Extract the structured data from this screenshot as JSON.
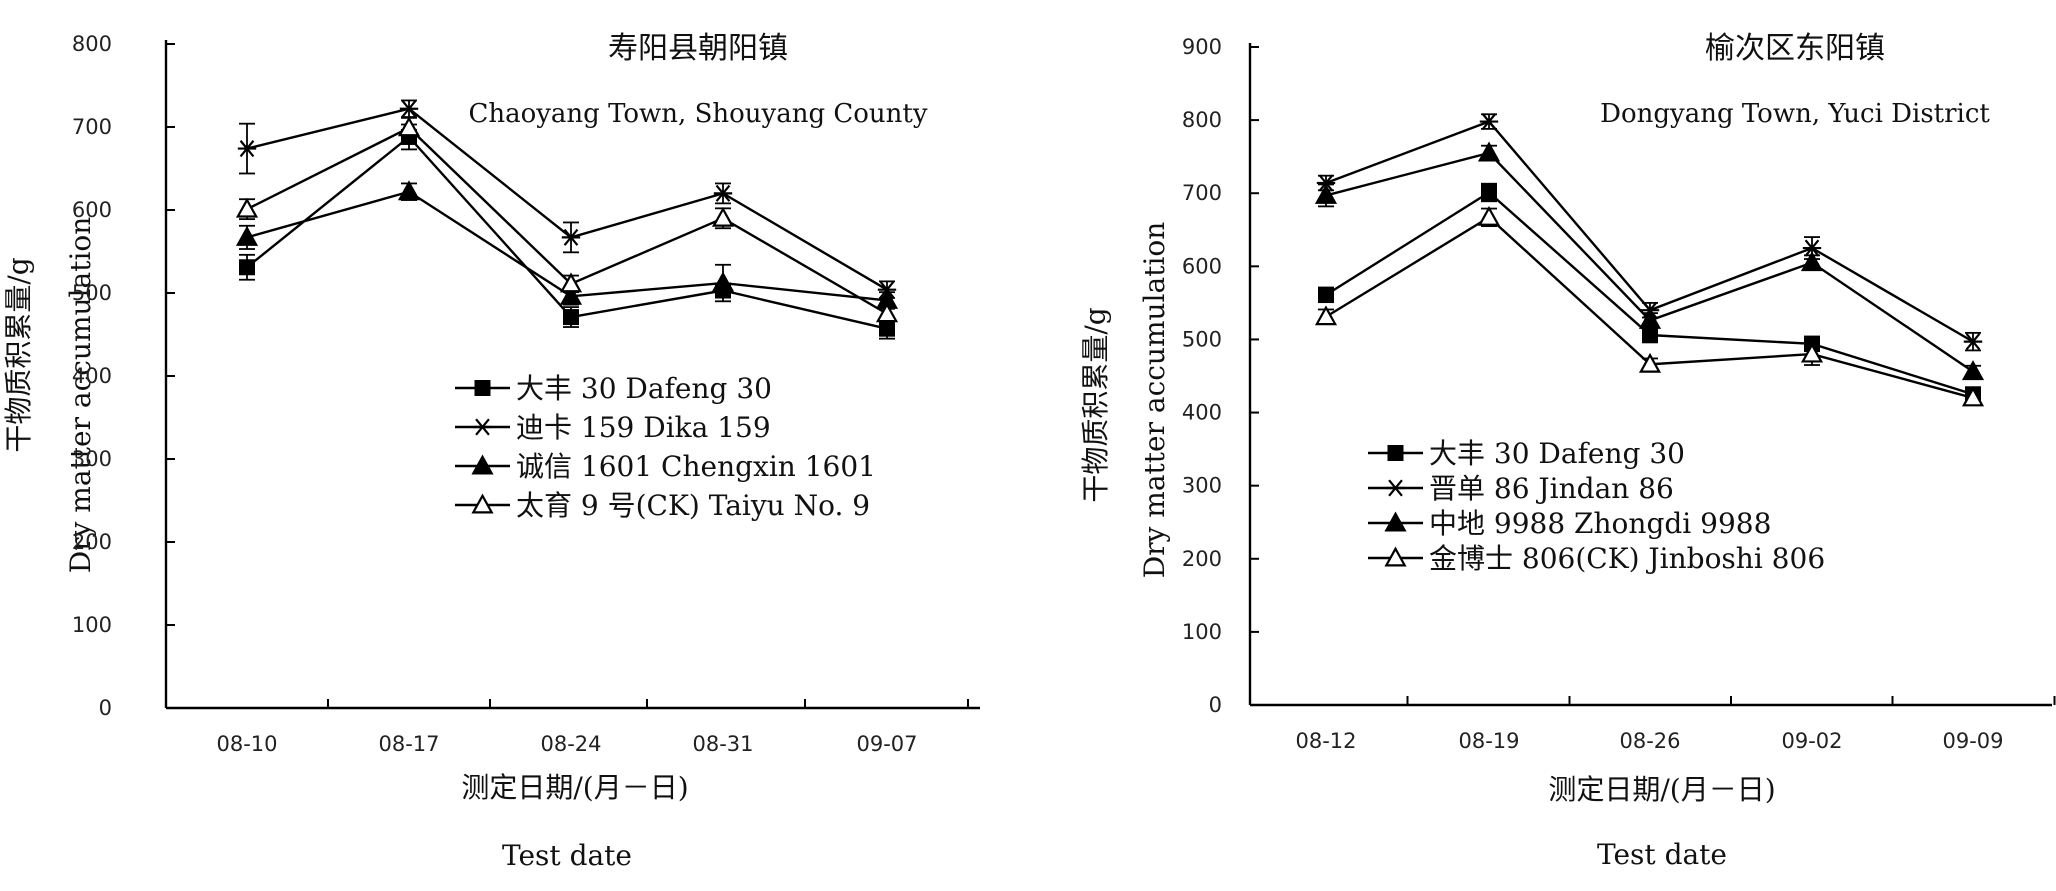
{
  "chart_data": [
    {
      "type": "line",
      "title": "寿阳县朝阳镇",
      "subtitle": "Chaoyang Town, Shouyang County",
      "ylabel_cn": "干物质积累量/g",
      "ylabel_en": "Dry matter accumulation",
      "xlabel_cn": "测定日期/(月－日)",
      "xlabel_en": "Test date",
      "ylim": [
        0,
        800
      ],
      "yticks": [
        0,
        100,
        200,
        300,
        400,
        500,
        600,
        700,
        800
      ],
      "categories": [
        "08-10",
        "08-17",
        "08-24",
        "08-31",
        "09-07"
      ],
      "legend_position": "center",
      "series": [
        {
          "name": "大丰 30 Dafeng 30",
          "marker": "square-filled",
          "values": [
            531,
            688,
            471,
            503,
            457
          ],
          "errors": [
            15,
            15,
            12,
            8,
            12
          ]
        },
        {
          "name": "迪卡 159 Dika 159",
          "marker": "asterisk",
          "values": [
            674,
            722,
            567,
            620,
            504
          ],
          "errors": [
            30,
            10,
            18,
            12,
            10
          ]
        },
        {
          "name": "诚信 1601 Chengxin 1601",
          "marker": "triangle-filled",
          "values": [
            567,
            622,
            496,
            512,
            491
          ],
          "errors": [
            14,
            10,
            10,
            22,
            10
          ]
        },
        {
          "name": "太育 9 号(CK) Taiyu No. 9",
          "marker": "triangle-open",
          "values": [
            601,
            699,
            511,
            590,
            475
          ],
          "errors": [
            12,
            12,
            10,
            12,
            10
          ]
        }
      ]
    },
    {
      "type": "line",
      "title": "榆次区东阳镇",
      "subtitle": "Dongyang Town, Yuci District",
      "ylabel_cn": "干物质积累量/g",
      "ylabel_en": "Dry matter accumulation",
      "xlabel_cn": "测定日期/(月－日)",
      "xlabel_en": "Test date",
      "ylim": [
        0,
        900
      ],
      "yticks": [
        0,
        100,
        200,
        300,
        400,
        500,
        600,
        700,
        800,
        900
      ],
      "categories": [
        "08-12",
        "08-19",
        "08-26",
        "09-02",
        "09-09"
      ],
      "legend_position": "bottom-left",
      "series": [
        {
          "name": "大丰 30 Dafeng 30",
          "marker": "square-filled",
          "values": [
            561,
            701,
            506,
            494,
            425
          ],
          "errors": [
            10,
            12,
            10,
            10,
            8
          ]
        },
        {
          "name": "晋单 86 Jindan 86",
          "marker": "asterisk",
          "values": [
            714,
            798,
            540,
            625,
            497
          ],
          "errors": [
            10,
            10,
            10,
            15,
            12
          ]
        },
        {
          "name": "中地 9988 Zhongdi 9988",
          "marker": "triangle-filled",
          "values": [
            697,
            755,
            526,
            605,
            456
          ],
          "errors": [
            15,
            10,
            10,
            10,
            8
          ]
        },
        {
          "name": "金博士 806(CK) Jinboshi 806",
          "marker": "triangle-open",
          "values": [
            531,
            667,
            466,
            480,
            420
          ],
          "errors": [
            10,
            12,
            8,
            15,
            8
          ]
        }
      ]
    }
  ]
}
